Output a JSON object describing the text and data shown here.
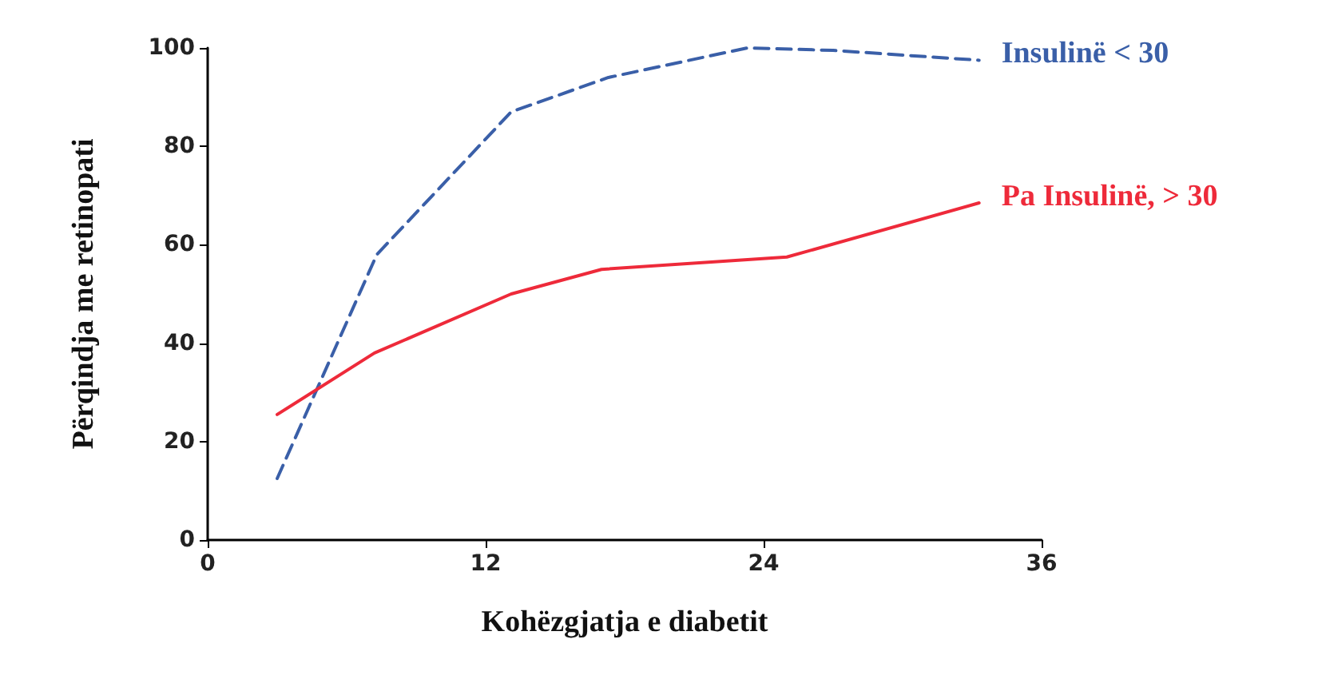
{
  "chart_data": {
    "type": "line",
    "xlabel": "Kohëzgjatja e diabetit",
    "ylabel": "Përqindja me retinopati",
    "xlim": [
      0,
      36
    ],
    "xticks": [
      0,
      12,
      24,
      36
    ],
    "ylim": [
      0,
      100
    ],
    "yticks": [
      0,
      20,
      40,
      60,
      80,
      100
    ],
    "grid": false,
    "legend": false,
    "marker": "none",
    "series": [
      {
        "name": "Insulinë < 30",
        "color": "#3a5fa8",
        "line_style": "dashed",
        "x": [
          3,
          7.3,
          13.1,
          17.3,
          23.3,
          27,
          33.3
        ],
        "values": [
          12.5,
          58,
          87,
          94,
          100,
          99.5,
          97.5
        ]
      },
      {
        "name": "Pa Insulinë, > 30",
        "color": "#ee2a3a",
        "line_style": "solid",
        "x": [
          3,
          7.2,
          13.1,
          17,
          25,
          33.3
        ],
        "values": [
          25.5,
          38,
          50,
          55,
          57.5,
          68.5
        ]
      }
    ]
  }
}
